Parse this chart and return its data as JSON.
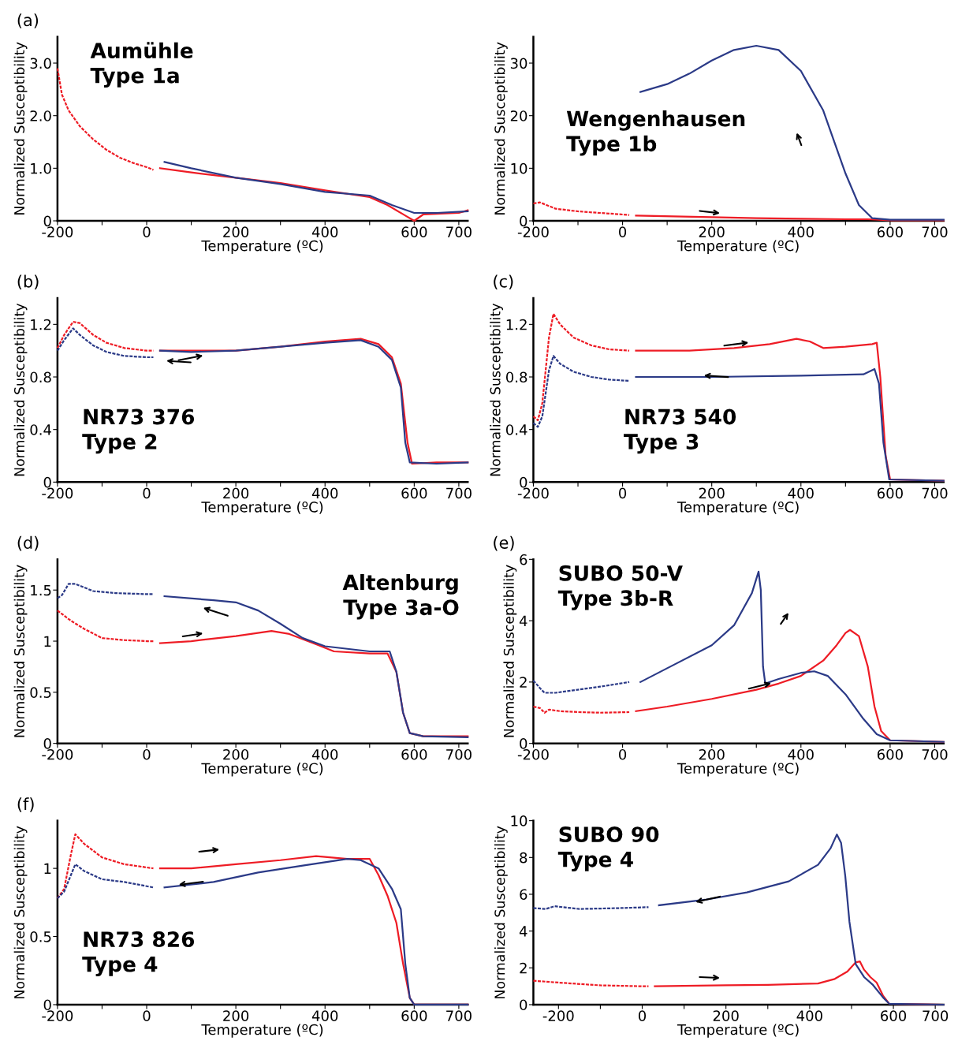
{
  "chart_data": [
    {
      "type": "line",
      "xlabel": "Temperature (ºC)",
      "ylabel": "Normalized Susceptibility",
      "xlim": [
        -200,
        720
      ],
      "ylim": [
        0,
        3.5
      ],
      "xticks": [
        -200,
        {
          "value": -100,
          "label": null
        },
        0,
        {
          "value": 100,
          "label": null
        },
        200,
        {
          "value": 300,
          "label": null
        },
        400,
        {
          "value": 500,
          "label": null
        },
        600,
        700
      ],
      "yticks": [
        0,
        {
          "value": 1,
          "label": "1.0"
        },
        {
          "value": 2,
          "label": "2.0"
        },
        {
          "value": 3,
          "label": "3.0"
        }
      ],
      "annotations": [
        "(a)",
        "Aumühle\nType 1a"
      ],
      "marker": "none",
      "grid": false,
      "legend": false,
      "series": [
        {
          "color": "#ee1c25",
          "line_style": "dashed",
          "x": [
            -200,
            -190,
            -175,
            -150,
            -120,
            -90,
            -60,
            -30,
            0,
            15
          ],
          "values": [
            2.9,
            2.4,
            2.1,
            1.8,
            1.55,
            1.35,
            1.2,
            1.1,
            1.02,
            0.97
          ]
        },
        {
          "color": "#ee1c25",
          "line_style": "solid",
          "x": [
            30,
            100,
            200,
            300,
            400,
            500,
            540,
            580,
            600,
            620,
            700,
            720
          ],
          "values": [
            1.0,
            0.92,
            0.82,
            0.72,
            0.58,
            0.45,
            0.3,
            0.1,
            0.0,
            0.12,
            0.15,
            0.2
          ]
        },
        {
          "color": "#2b3a87",
          "line_style": "solid",
          "x": [
            40,
            100,
            200,
            300,
            400,
            500,
            550,
            600,
            650,
            720
          ],
          "values": [
            1.12,
            1.0,
            0.82,
            0.7,
            0.55,
            0.48,
            0.3,
            0.15,
            0.15,
            0.18
          ]
        }
      ]
    },
    {
      "type": "line",
      "xlabel": "Temperature (ºC)",
      "ylabel": "Normalized Susceptibility",
      "xlim": [
        -200,
        720
      ],
      "ylim": [
        0,
        35
      ],
      "xticks": [
        -200,
        {
          "value": -100,
          "label": null
        },
        0,
        {
          "value": 100,
          "label": null
        },
        200,
        {
          "value": 300,
          "label": null
        },
        400,
        {
          "value": 500,
          "label": null
        },
        600,
        700
      ],
      "yticks": [
        0,
        10,
        20,
        30
      ],
      "annotations": [
        "Wengenhausen\nType 1b"
      ],
      "marker": "none",
      "grid": false,
      "legend": false,
      "series": [
        {
          "color": "#ee1c25",
          "line_style": "dashed",
          "x": [
            -200,
            -185,
            -150,
            -100,
            -50,
            0,
            15
          ],
          "values": [
            3.3,
            3.5,
            2.3,
            1.8,
            1.5,
            1.2,
            1.1
          ]
        },
        {
          "color": "#ee1c25",
          "line_style": "solid",
          "x": [
            30,
            200,
            300,
            400,
            500,
            550,
            600,
            720
          ],
          "values": [
            1.0,
            0.7,
            0.5,
            0.4,
            0.3,
            0.3,
            0.1,
            0.1
          ]
        },
        {
          "color": "#2b3a87",
          "line_style": "solid",
          "x": [
            40,
            100,
            150,
            200,
            250,
            300,
            350,
            400,
            450,
            500,
            530,
            560,
            600,
            720
          ],
          "values": [
            24.5,
            26,
            28,
            30.5,
            32.5,
            33.3,
            32.5,
            28.5,
            21,
            9,
            3,
            0.5,
            0.2,
            0.2
          ]
        }
      ]
    },
    {
      "type": "line",
      "xlabel": "Temperature (ºC)",
      "ylabel": "Normalized Susceptibility",
      "xlim": [
        -200,
        720
      ],
      "ylim": [
        0,
        1.4
      ],
      "xticks": [
        -200,
        {
          "value": -100,
          "label": null
        },
        0,
        {
          "value": 100,
          "label": null
        },
        200,
        {
          "value": 300,
          "label": null
        },
        400,
        {
          "value": 500,
          "label": null
        },
        600,
        700
      ],
      "yticks": [
        0,
        0.4,
        0.8,
        1.2
      ],
      "annotations": [
        "(b)",
        "NR73 376\nType 2"
      ],
      "marker": "none",
      "grid": false,
      "legend": false,
      "series": [
        {
          "color": "#ee1c25",
          "line_style": "dashed",
          "x": [
            -200,
            -185,
            -165,
            -150,
            -120,
            -90,
            -50,
            0,
            15
          ],
          "values": [
            1.02,
            1.12,
            1.22,
            1.21,
            1.12,
            1.06,
            1.02,
            1.0,
            1.0
          ]
        },
        {
          "color": "#2b3a87",
          "line_style": "dashed",
          "x": [
            -200,
            -185,
            -165,
            -150,
            -120,
            -90,
            -50,
            0,
            15
          ],
          "values": [
            1.0,
            1.08,
            1.17,
            1.12,
            1.04,
            0.99,
            0.96,
            0.95,
            0.95
          ]
        },
        {
          "color": "#ee1c25",
          "line_style": "solid",
          "x": [
            30,
            100,
            200,
            300,
            400,
            480,
            520,
            550,
            570,
            585,
            595,
            650,
            720
          ],
          "values": [
            1.0,
            1.0,
            1.0,
            1.03,
            1.07,
            1.09,
            1.05,
            0.95,
            0.75,
            0.3,
            0.14,
            0.15,
            0.15
          ]
        },
        {
          "color": "#2b3a87",
          "line_style": "solid",
          "x": [
            30,
            100,
            200,
            300,
            400,
            480,
            520,
            550,
            570,
            580,
            590,
            650,
            720
          ],
          "values": [
            1.0,
            0.99,
            1.0,
            1.03,
            1.06,
            1.08,
            1.03,
            0.93,
            0.72,
            0.3,
            0.15,
            0.14,
            0.15
          ]
        }
      ]
    },
    {
      "type": "line",
      "xlabel": "Temperature (ºC)",
      "ylabel": "Normalized Susceptibility",
      "xlim": [
        -200,
        720
      ],
      "ylim": [
        0,
        1.4
      ],
      "xticks": [
        -200,
        {
          "value": -100,
          "label": null
        },
        0,
        {
          "value": 100,
          "label": null
        },
        200,
        {
          "value": 300,
          "label": null
        },
        400,
        {
          "value": 500,
          "label": null
        },
        600,
        700
      ],
      "yticks": [
        0,
        0.4,
        0.8,
        1.2
      ],
      "annotations": [
        "(c)",
        "NR73 540\nType 3"
      ],
      "marker": "none",
      "grid": false,
      "legend": false,
      "series": [
        {
          "color": "#ee1c25",
          "line_style": "dashed",
          "x": [
            -200,
            -190,
            -180,
            -165,
            -155,
            -140,
            -110,
            -70,
            -30,
            15
          ],
          "values": [
            0.5,
            0.47,
            0.6,
            1.1,
            1.28,
            1.2,
            1.1,
            1.04,
            1.01,
            1.0
          ]
        },
        {
          "color": "#2b3a87",
          "line_style": "dashed",
          "x": [
            -200,
            -190,
            -180,
            -165,
            -155,
            -140,
            -110,
            -70,
            -30,
            15
          ],
          "values": [
            0.45,
            0.42,
            0.5,
            0.85,
            0.96,
            0.9,
            0.84,
            0.8,
            0.78,
            0.77
          ]
        },
        {
          "color": "#ee1c25",
          "line_style": "solid",
          "x": [
            30,
            150,
            250,
            330,
            390,
            420,
            450,
            500,
            560,
            570,
            578,
            590,
            600,
            720
          ],
          "values": [
            1.0,
            1.0,
            1.02,
            1.05,
            1.09,
            1.07,
            1.02,
            1.03,
            1.05,
            1.06,
            0.8,
            0.2,
            0.02,
            0.01
          ]
        },
        {
          "color": "#2b3a87",
          "line_style": "solid",
          "x": [
            30,
            200,
            400,
            540,
            565,
            575,
            585,
            598,
            720
          ],
          "values": [
            0.8,
            0.8,
            0.81,
            0.82,
            0.86,
            0.75,
            0.3,
            0.02,
            0.01
          ]
        }
      ]
    },
    {
      "type": "line",
      "xlabel": "Temperature (ºC)",
      "ylabel": "Normalized Susceptibility",
      "xlim": [
        -200,
        720
      ],
      "ylim": [
        0,
        1.8
      ],
      "xticks": [
        -200,
        {
          "value": -100,
          "label": null
        },
        0,
        {
          "value": 100,
          "label": null
        },
        200,
        {
          "value": 300,
          "label": null
        },
        400,
        {
          "value": 500,
          "label": null
        },
        600,
        700
      ],
      "yticks": [
        0,
        0.5,
        1,
        1.5
      ],
      "annotations": [
        "(d)",
        "Altenburg\nType 3a-O"
      ],
      "marker": "none",
      "grid": false,
      "legend": false,
      "series": [
        {
          "color": "#ee1c25",
          "line_style": "dashed",
          "x": [
            -200,
            -170,
            -140,
            -100,
            -50,
            0,
            15
          ],
          "values": [
            1.3,
            1.2,
            1.12,
            1.03,
            1.01,
            1.0,
            1.0
          ]
        },
        {
          "color": "#2b3a87",
          "line_style": "dashed",
          "x": [
            -200,
            -190,
            -175,
            -160,
            -120,
            -70,
            0,
            15
          ],
          "values": [
            1.42,
            1.45,
            1.56,
            1.56,
            1.49,
            1.47,
            1.46,
            1.46
          ]
        },
        {
          "color": "#ee1c25",
          "line_style": "solid",
          "x": [
            30,
            100,
            200,
            280,
            320,
            380,
            420,
            500,
            540,
            560,
            575,
            590,
            620,
            720
          ],
          "values": [
            0.98,
            1.0,
            1.05,
            1.1,
            1.07,
            0.97,
            0.9,
            0.88,
            0.88,
            0.7,
            0.3,
            0.1,
            0.07,
            0.07
          ]
        },
        {
          "color": "#2b3a87",
          "line_style": "solid",
          "x": [
            40,
            150,
            200,
            250,
            300,
            350,
            400,
            500,
            545,
            560,
            575,
            590,
            620,
            720
          ],
          "values": [
            1.44,
            1.4,
            1.38,
            1.3,
            1.17,
            1.03,
            0.95,
            0.9,
            0.9,
            0.7,
            0.3,
            0.1,
            0.07,
            0.06
          ]
        }
      ]
    },
    {
      "type": "line",
      "xlabel": "Temperature (ºC)",
      "ylabel": "Normalized Susceptibility",
      "xlim": [
        -200,
        720
      ],
      "ylim": [
        0,
        6
      ],
      "xticks": [
        -200,
        {
          "value": -100,
          "label": null
        },
        0,
        {
          "value": 100,
          "label": null
        },
        200,
        {
          "value": 300,
          "label": null
        },
        400,
        {
          "value": 500,
          "label": null
        },
        600,
        700
      ],
      "yticks": [
        0,
        2,
        4,
        6
      ],
      "annotations": [
        "(e)",
        "SUBO 50-V\nType 3b-R"
      ],
      "marker": "none",
      "grid": false,
      "legend": false,
      "series": [
        {
          "color": "#ee1c25",
          "line_style": "dashed",
          "x": [
            -200,
            -185,
            -175,
            -165,
            -140,
            -100,
            -50,
            15
          ],
          "values": [
            1.2,
            1.15,
            1.0,
            1.1,
            1.05,
            1.02,
            1.0,
            1.02
          ]
        },
        {
          "color": "#2b3a87",
          "line_style": "dashed",
          "x": [
            -200,
            -185,
            -175,
            -150,
            -100,
            -50,
            15
          ],
          "values": [
            2.05,
            1.8,
            1.65,
            1.65,
            1.75,
            1.85,
            2.0
          ]
        },
        {
          "color": "#ee1c25",
          "line_style": "solid",
          "x": [
            30,
            100,
            200,
            300,
            350,
            400,
            450,
            480,
            500,
            510,
            530,
            550,
            565,
            580,
            600,
            720
          ],
          "values": [
            1.05,
            1.2,
            1.45,
            1.75,
            1.95,
            2.2,
            2.7,
            3.2,
            3.6,
            3.7,
            3.5,
            2.5,
            1.2,
            0.4,
            0.1,
            0.05
          ]
        },
        {
          "color": "#2b3a87",
          "line_style": "solid",
          "x": [
            40,
            100,
            200,
            250,
            290,
            305,
            310,
            315,
            320,
            350,
            400,
            430,
            460,
            500,
            540,
            570,
            600,
            720
          ],
          "values": [
            2.0,
            2.45,
            3.2,
            3.85,
            4.9,
            5.6,
            5.0,
            2.5,
            1.95,
            2.1,
            2.3,
            2.35,
            2.2,
            1.6,
            0.8,
            0.3,
            0.1,
            0.05
          ]
        }
      ]
    },
    {
      "type": "line",
      "xlabel": "Temperature (ºC)",
      "ylabel": "Normalized Susceptibility",
      "xlim": [
        -200,
        720
      ],
      "ylim": [
        0,
        1.35
      ],
      "xticks": [
        -200,
        {
          "value": -100,
          "label": null
        },
        0,
        {
          "value": 100,
          "label": null
        },
        200,
        {
          "value": 300,
          "label": null
        },
        400,
        {
          "value": 500,
          "label": null
        },
        600,
        700
      ],
      "yticks": [
        0,
        0.5,
        1
      ],
      "annotations": [
        "(f)",
        "NR73 826\nType 4"
      ],
      "marker": "none",
      "grid": false,
      "legend": false,
      "series": [
        {
          "color": "#ee1c25",
          "line_style": "dashed",
          "x": [
            -200,
            -185,
            -170,
            -160,
            -140,
            -100,
            -50,
            15
          ],
          "values": [
            0.78,
            0.85,
            1.1,
            1.25,
            1.18,
            1.08,
            1.03,
            1.0
          ]
        },
        {
          "color": "#2b3a87",
          "line_style": "dashed",
          "x": [
            -200,
            -185,
            -170,
            -160,
            -140,
            -100,
            -50,
            15
          ],
          "values": [
            0.78,
            0.83,
            0.95,
            1.03,
            0.98,
            0.92,
            0.9,
            0.86
          ]
        },
        {
          "color": "#ee1c25",
          "line_style": "solid",
          "x": [
            30,
            100,
            200,
            300,
            380,
            450,
            500,
            520,
            540,
            560,
            575,
            590,
            600,
            720
          ],
          "values": [
            1.0,
            1.0,
            1.03,
            1.06,
            1.09,
            1.07,
            1.07,
            0.95,
            0.8,
            0.6,
            0.3,
            0.05,
            0.0,
            0.0
          ]
        },
        {
          "color": "#2b3a87",
          "line_style": "solid",
          "x": [
            40,
            150,
            250,
            350,
            450,
            480,
            520,
            550,
            570,
            580,
            590,
            600,
            720
          ],
          "values": [
            0.86,
            0.9,
            0.97,
            1.02,
            1.07,
            1.06,
            1.0,
            0.85,
            0.7,
            0.3,
            0.05,
            0.0,
            0.0
          ]
        }
      ]
    },
    {
      "type": "line",
      "xlabel": "Temperature (ºC)",
      "ylabel": "Normalized Susceptibility",
      "xlim": [
        -260,
        720
      ],
      "ylim": [
        0,
        10
      ],
      "xticks": [
        -200,
        {
          "value": -100,
          "label": null
        },
        0,
        {
          "value": 100,
          "label": null
        },
        200,
        {
          "value": 300,
          "label": null
        },
        400,
        {
          "value": 500,
          "label": null
        },
        600,
        700
      ],
      "yticks": [
        0,
        2,
        4,
        6,
        8,
        10
      ],
      "annotations": [
        "SUBO 90\nType 4"
      ],
      "marker": "none",
      "grid": false,
      "legend": false,
      "series": [
        {
          "color": "#ee1c25",
          "line_style": "dashed",
          "x": [
            -260,
            -200,
            -100,
            0,
            15
          ],
          "values": [
            1.3,
            1.2,
            1.05,
            1.0,
            1.0
          ]
        },
        {
          "color": "#2b3a87",
          "line_style": "dashed",
          "x": [
            -260,
            -230,
            -210,
            -150,
            -50,
            15
          ],
          "values": [
            5.25,
            5.2,
            5.35,
            5.2,
            5.25,
            5.3
          ]
        },
        {
          "color": "#ee1c25",
          "line_style": "solid",
          "x": [
            30,
            200,
            300,
            420,
            460,
            490,
            510,
            520,
            530,
            545,
            560,
            575,
            590,
            720
          ],
          "values": [
            1.0,
            1.05,
            1.08,
            1.15,
            1.4,
            1.8,
            2.3,
            2.35,
            1.9,
            1.5,
            1.2,
            0.5,
            0.05,
            0.0
          ]
        },
        {
          "color": "#2b3a87",
          "line_style": "solid",
          "x": [
            40,
            150,
            250,
            350,
            420,
            450,
            465,
            475,
            485,
            495,
            510,
            530,
            550,
            575,
            590,
            720
          ],
          "values": [
            5.4,
            5.7,
            6.1,
            6.7,
            7.6,
            8.5,
            9.25,
            8.8,
            7,
            4.5,
            2.2,
            1.5,
            1.1,
            0.4,
            0.05,
            0.0
          ]
        }
      ]
    }
  ]
}
